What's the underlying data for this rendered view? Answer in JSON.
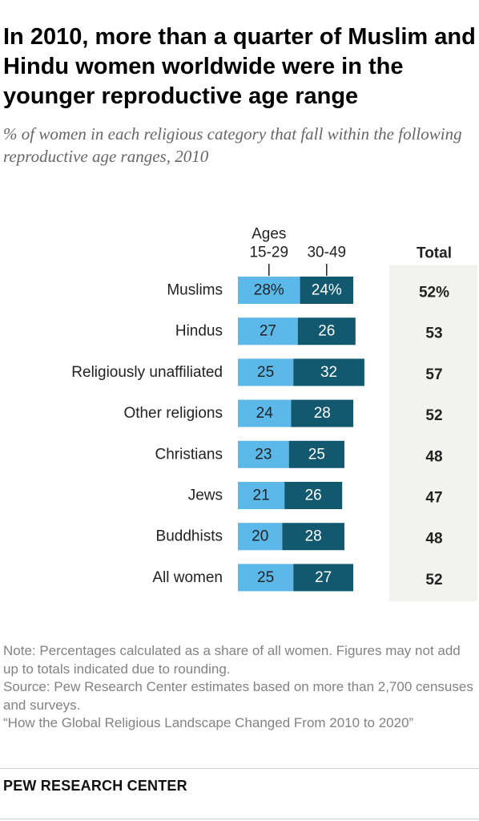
{
  "header": {
    "title": "In 2010, more than a quarter of Muslim and Hindu women worldwide were in the younger reproductive age range",
    "subtitle": "% of women in each religious category that fall within the following reproductive age ranges, 2010"
  },
  "chart_data": {
    "type": "bar",
    "stacked": true,
    "orientation": "horizontal",
    "categories": [
      "Muslims",
      "Hindus",
      "Religiously unaffiliated",
      "Other religions",
      "Christians",
      "Jews",
      "Buddhists",
      "All women"
    ],
    "series": [
      {
        "name": "Ages 15-29",
        "header_line1": "Ages",
        "header_line2": "15-29",
        "color": "#5bb8e8",
        "values": [
          28,
          27,
          25,
          24,
          23,
          21,
          20,
          25
        ],
        "labels": [
          "28%",
          "27",
          "25",
          "24",
          "23",
          "21",
          "20",
          "25"
        ]
      },
      {
        "name": "30-49",
        "header_line1": "",
        "header_line2": "30-49",
        "color": "#12586f",
        "values": [
          24,
          26,
          32,
          28,
          25,
          26,
          28,
          27
        ],
        "labels": [
          "24%",
          "26",
          "32",
          "28",
          "25",
          "26",
          "28",
          "27"
        ]
      }
    ],
    "total": {
      "header": "Total",
      "values": [
        52,
        53,
        57,
        52,
        48,
        47,
        48,
        52
      ],
      "labels": [
        "52%",
        "53",
        "57",
        "52",
        "48",
        "47",
        "48",
        "52"
      ]
    },
    "colors": {
      "total_panel": "#f2f2ef",
      "label_light": "#222222",
      "label_dark": "#ffffff"
    }
  },
  "notes": {
    "note": "Note: Percentages calculated as a share of all women. Figures may not add up to totals indicated due to rounding.",
    "source": "Source: Pew Research Center estimates based on more than 2,700 censuses and surveys.",
    "report": "“How the Global Religious Landscape Changed From 2010 to 2020”"
  },
  "footer": {
    "brand": "PEW RESEARCH CENTER"
  }
}
